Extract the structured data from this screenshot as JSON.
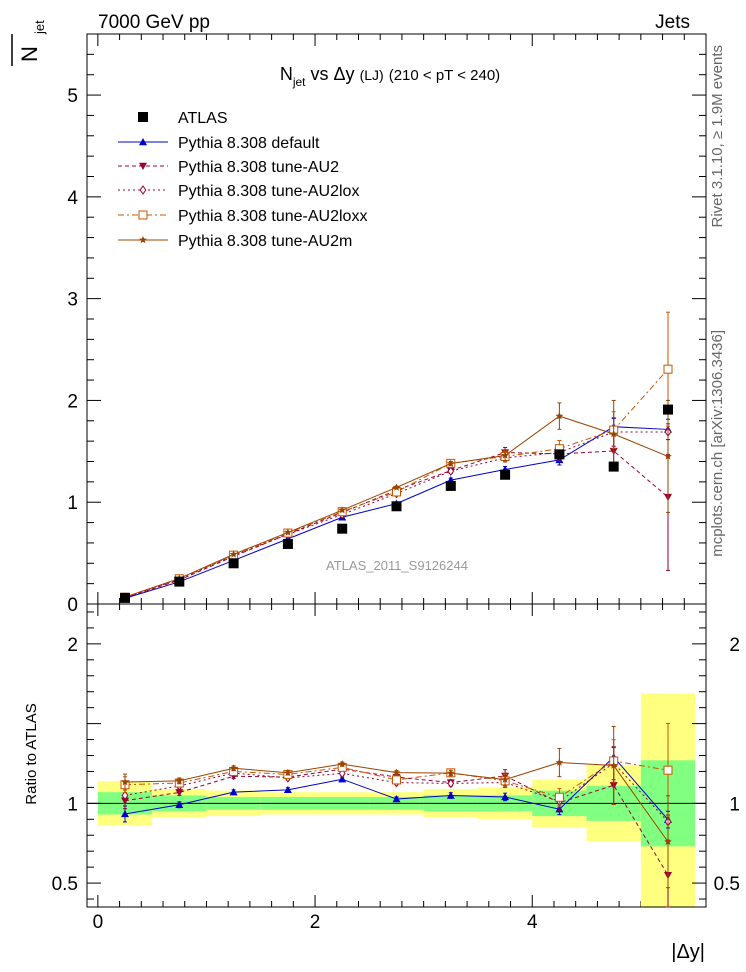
{
  "header": {
    "left": "7000 GeV pp",
    "right": "Jets"
  },
  "side_labels": {
    "rivet": "Rivet 3.1.10, ≥ 1.9M events",
    "mcplots": "mcplots.cern.ch [arXiv:1306.3436]"
  },
  "chart_data": {
    "type": "line",
    "title": {
      "main": "N",
      "main_sub": "jet",
      "rest": " vs Δy",
      "small": "(LJ)",
      "tail": "(210 < pT < 240)"
    },
    "watermark": "ATLAS_2011_S9126244",
    "ylabel": {
      "over": "N",
      "sub": "jet"
    },
    "ratio_ylabel": "Ratio to ATLAS",
    "xlabel": "|Δy|",
    "x": [
      0.25,
      0.75,
      1.25,
      1.75,
      2.25,
      2.75,
      3.25,
      3.75,
      4.25,
      4.75,
      5.25
    ],
    "x_edges": [
      0,
      0.5,
      1.0,
      1.5,
      2.0,
      2.5,
      3.0,
      3.5,
      4.0,
      4.5,
      5.0,
      5.5
    ],
    "xlim": [
      -0.1,
      5.6
    ],
    "ylim": [
      0,
      5.6
    ],
    "ratio_ylim": [
      0.35,
      2.25
    ],
    "x_ticks": [
      "0",
      "2",
      "4"
    ],
    "y_ticks": [
      "0",
      "1",
      "2",
      "3",
      "4",
      "5"
    ],
    "ratio_ticks": [
      "0.5",
      "1",
      "2"
    ],
    "legend_position": "top-left",
    "band_colors": {
      "inner": "#80ff80",
      "outer": "#ffff80"
    },
    "bands_inner": [
      0.07,
      0.05,
      0.04,
      0.04,
      0.04,
      0.04,
      0.05,
      0.05,
      0.08,
      0.11,
      0.27
    ],
    "bands_outer": [
      0.14,
      0.09,
      0.08,
      0.07,
      0.07,
      0.07,
      0.09,
      0.1,
      0.15,
      0.24,
      0.69
    ],
    "data": {
      "name": "ATLAS",
      "values": [
        0.06,
        0.22,
        0.4,
        0.59,
        0.74,
        0.96,
        1.16,
        1.27,
        1.47,
        1.35,
        1.91
      ],
      "color": "#000000"
    },
    "series": [
      {
        "name": "Pythia 8.308 default",
        "color": "#0000cc",
        "dash": "",
        "marker": "triangle-up",
        "values": [
          0.056,
          0.218,
          0.428,
          0.64,
          0.852,
          0.986,
          1.217,
          1.321,
          1.416,
          1.742,
          1.715
        ],
        "errors": [
          0.003,
          0.004,
          0.006,
          0.008,
          0.01,
          0.013,
          0.02,
          0.03,
          0.05,
          0.08,
          0.1
        ]
      },
      {
        "name": "Pythia 8.308 tune-AU2",
        "color": "#990033",
        "dash": "4,3",
        "marker": "triangle-down",
        "values": [
          0.061,
          0.235,
          0.468,
          0.687,
          0.899,
          1.118,
          1.311,
          1.488,
          1.475,
          1.503,
          1.05
        ],
        "errors": [
          0.003,
          0.004,
          0.006,
          0.008,
          0.01,
          0.013,
          0.02,
          0.05,
          0.07,
          0.16,
          0.72
        ]
      },
      {
        "name": "Pythia 8.308 tune-AU2lox",
        "color": "#990033",
        "dash": "2,3",
        "marker": "diamond-open",
        "values": [
          0.063,
          0.244,
          0.476,
          0.684,
          0.879,
          1.085,
          1.305,
          1.436,
          1.489,
          1.69,
          1.69
        ],
        "errors": [
          0.003,
          0.004,
          0.006,
          0.008,
          0.01,
          0.013,
          0.02,
          0.04,
          0.06,
          0.14,
          0.22
        ]
      },
      {
        "name": "Pythia 8.308 tune-AU2loxx",
        "color": "#cc5500",
        "dash": "6,3,2,3",
        "marker": "square-open",
        "values": [
          0.067,
          0.248,
          0.48,
          0.697,
          0.907,
          1.101,
          1.382,
          1.449,
          1.526,
          1.709,
          2.307
        ],
        "errors": [
          0.003,
          0.004,
          0.006,
          0.008,
          0.01,
          0.013,
          0.02,
          0.05,
          0.08,
          0.18,
          0.56
        ]
      },
      {
        "name": "Pythia 8.308 tune-AU2m",
        "color": "#994400",
        "dash": "",
        "marker": "star",
        "values": [
          0.068,
          0.251,
          0.488,
          0.703,
          0.922,
          1.145,
          1.38,
          1.459,
          1.846,
          1.67,
          1.45
        ],
        "errors": [
          0.003,
          0.004,
          0.006,
          0.008,
          0.01,
          0.013,
          0.02,
          0.05,
          0.13,
          0.33,
          0.55
        ]
      }
    ]
  }
}
